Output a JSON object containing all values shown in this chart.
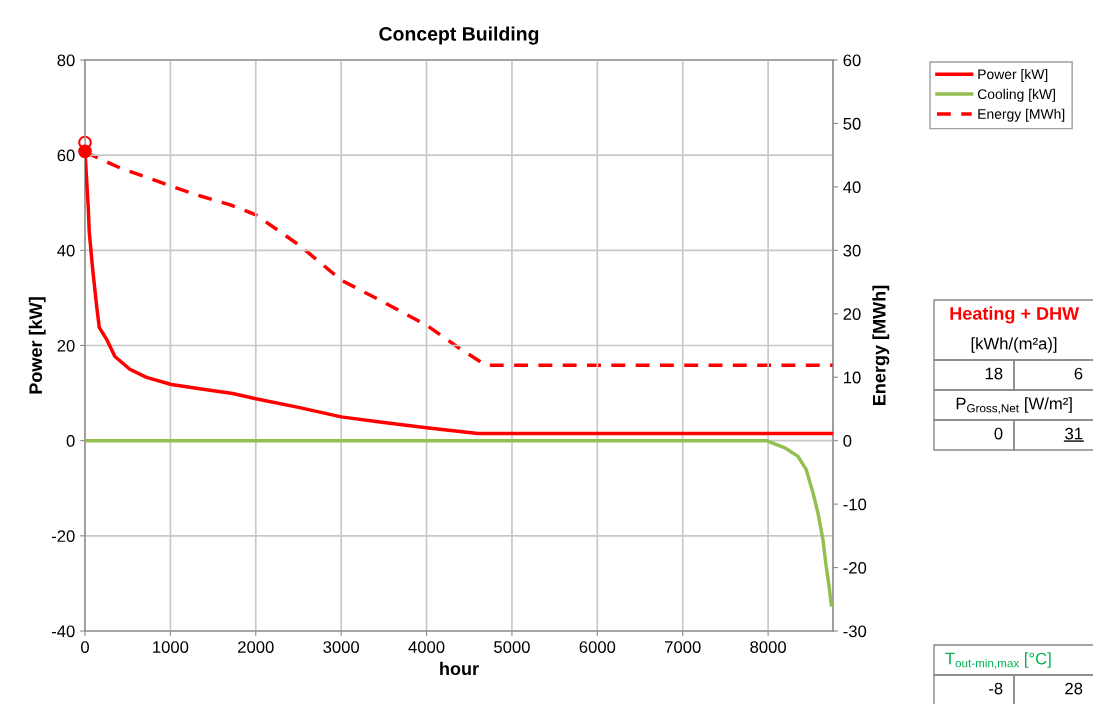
{
  "chart_data": {
    "type": "line",
    "title": "Concept Building",
    "xlabel": "hour",
    "ylabel": "Power [kW]",
    "y2label": "Energy [MWh]",
    "xlim": [
      0,
      8760
    ],
    "xticks": [
      0,
      1000,
      2000,
      3000,
      4000,
      5000,
      6000,
      7000,
      8000
    ],
    "ylim": [
      -40,
      80
    ],
    "yticks": [
      -40,
      -20,
      0,
      20,
      40,
      60,
      80
    ],
    "y2lim": [
      -30,
      60
    ],
    "y2ticks": [
      -30,
      -20,
      -10,
      0,
      10,
      20,
      30,
      40,
      50,
      60
    ],
    "grid": true,
    "legend": "top right",
    "series": [
      {
        "name": "Power [kW]",
        "color": "#ff0000",
        "line_style": "solid",
        "x": [
          0,
          38,
          50,
          90,
          137,
          167,
          253,
          350,
          525,
          720,
          1012,
          1343,
          1730,
          2000,
          2500,
          3000,
          3500,
          4000,
          4600,
          8760
        ],
        "values": [
          60.8,
          49,
          43.8,
          36,
          28.2,
          23.8,
          21.3,
          17.7,
          15,
          13.3,
          11.8,
          10.9,
          9.9,
          8.8,
          7,
          5,
          3.8,
          2.7,
          1.5,
          1.5
        ]
      },
      {
        "name": "Cooling [kW]",
        "color": "#92c050",
        "line_style": "solid",
        "x": [
          0,
          7980,
          8195,
          8350,
          8447,
          8526,
          8584,
          8642,
          8681,
          8712,
          8740
        ],
        "values": [
          0,
          0,
          -1.5,
          -3.3,
          -6.1,
          -11,
          -15.2,
          -20.8,
          -26.5,
          -30.3,
          -34.5
        ]
      },
      {
        "name": "Energy [MWh]",
        "color": "#ff0000",
        "line_style": "dashed",
        "axis": "y2",
        "x": [
          0,
          409,
          1012,
          1343,
          1693,
          2000,
          2511,
          3000,
          3445,
          4000,
          4380,
          4695,
          8760
        ],
        "values": [
          45.5,
          43,
          40.1,
          38.6,
          37.2,
          35.6,
          30.8,
          25.3,
          22.2,
          18.2,
          14.6,
          11.9,
          11.9
        ]
      },
      {
        "type": "scatter",
        "color": "#ff0000",
        "marker": "circle",
        "x": [
          0
        ],
        "values": [
          60.8
        ]
      },
      {
        "type": "scatter",
        "color": "#ff0000",
        "marker": "circle",
        "axis": "y2",
        "x": [
          0
        ],
        "values": [
          47
        ]
      }
    ],
    "annotations": [
      "Heating + DHW",
      "[kWh/(m²a)]",
      "18",
      "6",
      "P$_{Gross,Net}$ [W/m²]",
      "0",
      "31",
      "T$_{out-min,max}$ [°C]",
      "-8",
      "28"
    ]
  }
}
